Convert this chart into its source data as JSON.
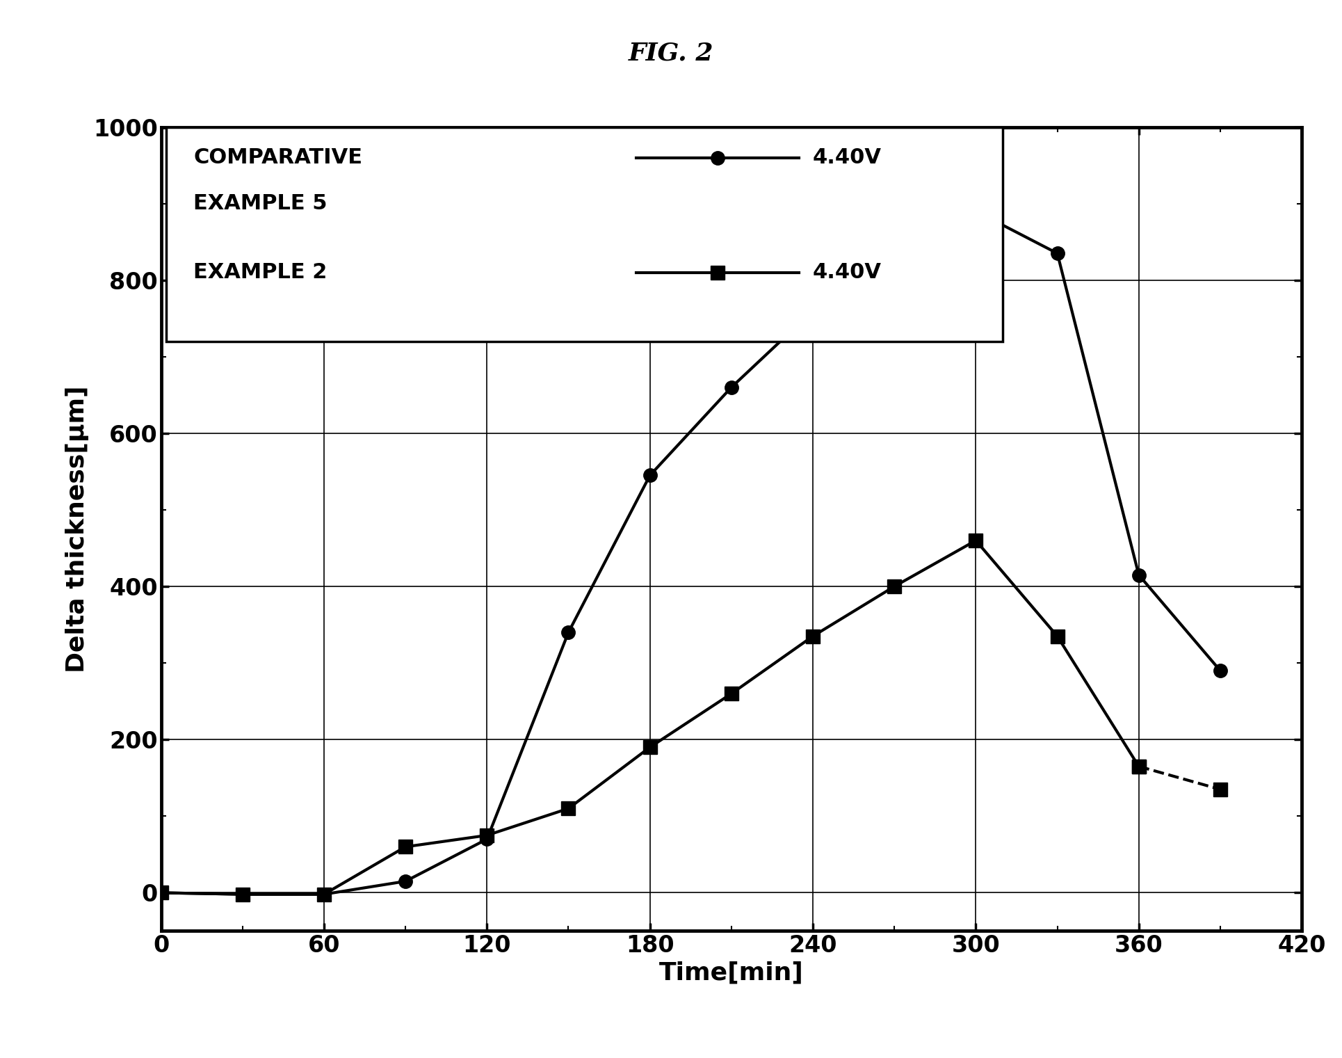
{
  "title": "FIG. 2",
  "xlabel": "Time[min]",
  "ylabel": "Delta thickness[μm]",
  "xlim": [
    0,
    420
  ],
  "ylim": [
    -50,
    1000
  ],
  "xticks": [
    0,
    60,
    120,
    180,
    240,
    300,
    360,
    420
  ],
  "yticks": [
    0,
    200,
    400,
    600,
    800,
    1000
  ],
  "series": [
    {
      "marker": "o",
      "color": "#000000",
      "x": [
        0,
        30,
        60,
        90,
        120,
        150,
        180,
        210,
        240,
        270,
        300,
        330,
        360,
        390
      ],
      "y": [
        0,
        -2,
        -2,
        15,
        70,
        340,
        545,
        660,
        760,
        830,
        890,
        835,
        415,
        290
      ],
      "dashed_from": null
    },
    {
      "marker": "s",
      "color": "#000000",
      "x": [
        0,
        30,
        60,
        90,
        120,
        150,
        180,
        210,
        240,
        270,
        300,
        330,
        360,
        390
      ],
      "y": [
        0,
        -2,
        -2,
        60,
        75,
        110,
        190,
        260,
        335,
        400,
        460,
        335,
        165,
        135
      ],
      "dashed_from": 12
    }
  ],
  "legend": {
    "row1_left": "COMPARATIVE",
    "row2_left": "EXAMPLE 5",
    "row3_left": "EXAMPLE 2",
    "row1_voltage": "4.40V",
    "row3_voltage": "4.40V"
  },
  "background_color": "#ffffff",
  "title_fontsize": 26,
  "label_fontsize": 26,
  "tick_fontsize": 24,
  "legend_fontsize": 22,
  "linewidth": 3.0,
  "markersize": 14
}
